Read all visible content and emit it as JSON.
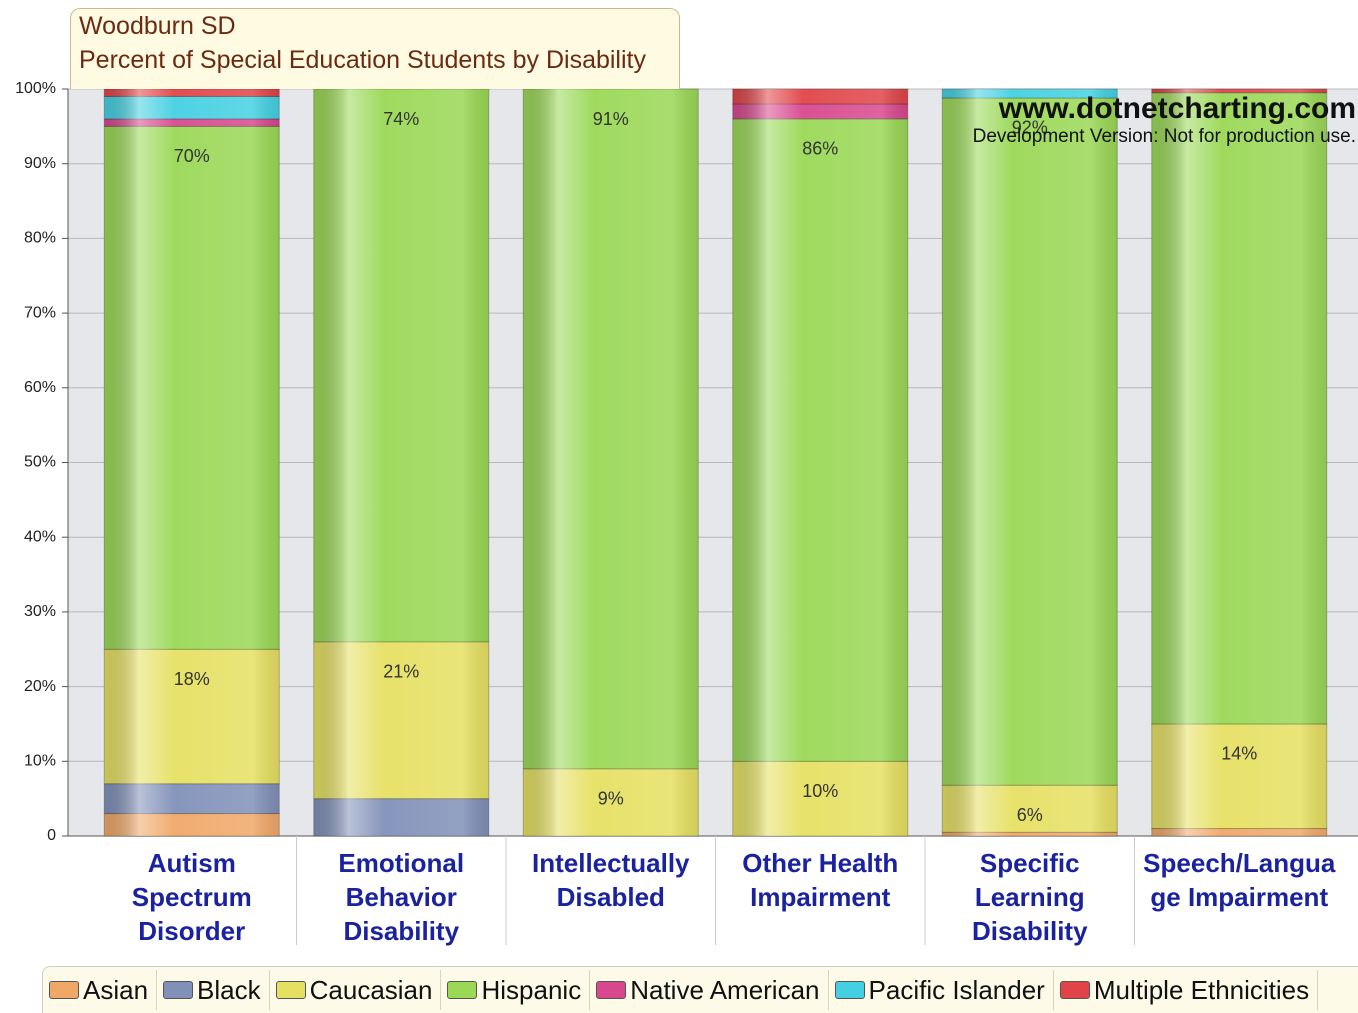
{
  "chart_data": {
    "type": "stacked_bar",
    "title": "Woodburn SD",
    "subtitle": "Percent of Special Education Students by Disability",
    "annotations": [
      "www.dotnetcharting.com",
      "Development Version: Not for production use."
    ],
    "categories": [
      "Autism Spectrum Disorder",
      "Emotional Behavior Disability",
      "Intellectually Disabled",
      "Other Health Impairment",
      "Specific Learning Disability",
      "Speech/Language Impairment"
    ],
    "series": [
      {
        "name": "Asian",
        "color": "#f0a868",
        "values": [
          3,
          0,
          0,
          0,
          0.5,
          1
        ],
        "value_labels": [
          null,
          null,
          null,
          null,
          null,
          null
        ]
      },
      {
        "name": "Black",
        "color": "#8090b8",
        "values": [
          4,
          5,
          0,
          0,
          0,
          0
        ],
        "value_labels": [
          null,
          null,
          null,
          null,
          null,
          null
        ]
      },
      {
        "name": "Caucasian",
        "color": "#e6e062",
        "values": [
          18,
          21,
          9,
          10,
          6.3,
          14
        ],
        "value_labels": [
          "18%",
          "21%",
          "9%",
          "10%",
          "6%",
          "14%"
        ]
      },
      {
        "name": "Hispanic",
        "color": "#9ad856",
        "values": [
          70,
          74,
          91,
          86,
          92,
          84.5
        ],
        "value_labels": [
          "70%",
          "74%",
          "91%",
          "86%",
          "92%",
          null
        ]
      },
      {
        "name": "Native American",
        "color": "#d8488e",
        "values": [
          1,
          0,
          0,
          2,
          0,
          0
        ],
        "value_labels": [
          null,
          null,
          null,
          null,
          null,
          null
        ]
      },
      {
        "name": "Pacific Islander",
        "color": "#44d0e2",
        "values": [
          3,
          0,
          0,
          0,
          1.2,
          0
        ],
        "value_labels": [
          null,
          null,
          null,
          null,
          null,
          null
        ]
      },
      {
        "name": "Multiple Ethnicities",
        "color": "#e04448",
        "values": [
          1,
          0,
          0,
          2,
          0,
          0.5
        ],
        "value_labels": [
          null,
          null,
          null,
          null,
          null,
          null
        ]
      }
    ],
    "ylim": [
      0,
      100
    ],
    "yticks": [
      0,
      {
        "value": 10,
        "label": "10%"
      },
      {
        "value": 20,
        "label": "20%"
      },
      {
        "value": 30,
        "label": "30%"
      },
      {
        "value": 40,
        "label": "40%"
      },
      {
        "value": 50,
        "label": "50%"
      },
      {
        "value": 60,
        "label": "60%"
      },
      {
        "value": 70,
        "label": "70%"
      },
      {
        "value": 80,
        "label": "80%"
      },
      {
        "value": 90,
        "label": "90%"
      },
      {
        "value": 100,
        "label": "100%"
      }
    ],
    "grid": true,
    "legend": "bottom"
  }
}
